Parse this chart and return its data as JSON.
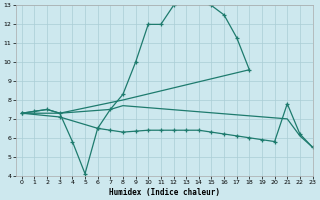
{
  "title": "",
  "xlabel": "Humidex (Indice chaleur)",
  "bg_color": "#cde8ee",
  "grid_color": "#aacdd5",
  "line_color": "#1e7b6e",
  "xlim": [
    -0.5,
    23
  ],
  "ylim": [
    4,
    13
  ],
  "xticks": [
    0,
    1,
    2,
    3,
    4,
    5,
    6,
    7,
    8,
    9,
    10,
    11,
    12,
    13,
    14,
    15,
    16,
    17,
    18,
    19,
    20,
    21,
    22,
    23
  ],
  "yticks": [
    4,
    5,
    6,
    7,
    8,
    9,
    10,
    11,
    12,
    13
  ],
  "series": [
    {
      "x": [
        0,
        1,
        2,
        3,
        4,
        5,
        6,
        7,
        8,
        9,
        10,
        11,
        12,
        13,
        14,
        15,
        16,
        17,
        18
      ],
      "y": [
        7.3,
        7.4,
        7.5,
        7.3,
        5.8,
        4.1,
        6.5,
        7.5,
        8.3,
        10.0,
        12.0,
        12.0,
        13.0,
        13.2,
        13.2,
        13.0,
        12.5,
        11.3,
        9.6
      ],
      "marker": true
    },
    {
      "x": [
        0,
        3,
        8,
        18
      ],
      "y": [
        7.3,
        7.3,
        8.0,
        9.6
      ],
      "marker": false
    },
    {
      "x": [
        0,
        3,
        6,
        7,
        8,
        9,
        10,
        11,
        12,
        13,
        14,
        15,
        16,
        17,
        18,
        19,
        20,
        21,
        22,
        23
      ],
      "y": [
        7.3,
        7.1,
        6.5,
        6.4,
        6.3,
        6.35,
        6.4,
        6.4,
        6.4,
        6.4,
        6.4,
        6.3,
        6.2,
        6.1,
        6.0,
        5.9,
        5.8,
        7.8,
        6.2,
        5.5
      ],
      "marker": true
    },
    {
      "x": [
        0,
        1,
        2,
        3,
        7,
        8,
        21,
        22,
        23
      ],
      "y": [
        7.3,
        7.4,
        7.5,
        7.3,
        7.5,
        7.7,
        7.0,
        6.1,
        5.5
      ],
      "marker": false
    }
  ]
}
